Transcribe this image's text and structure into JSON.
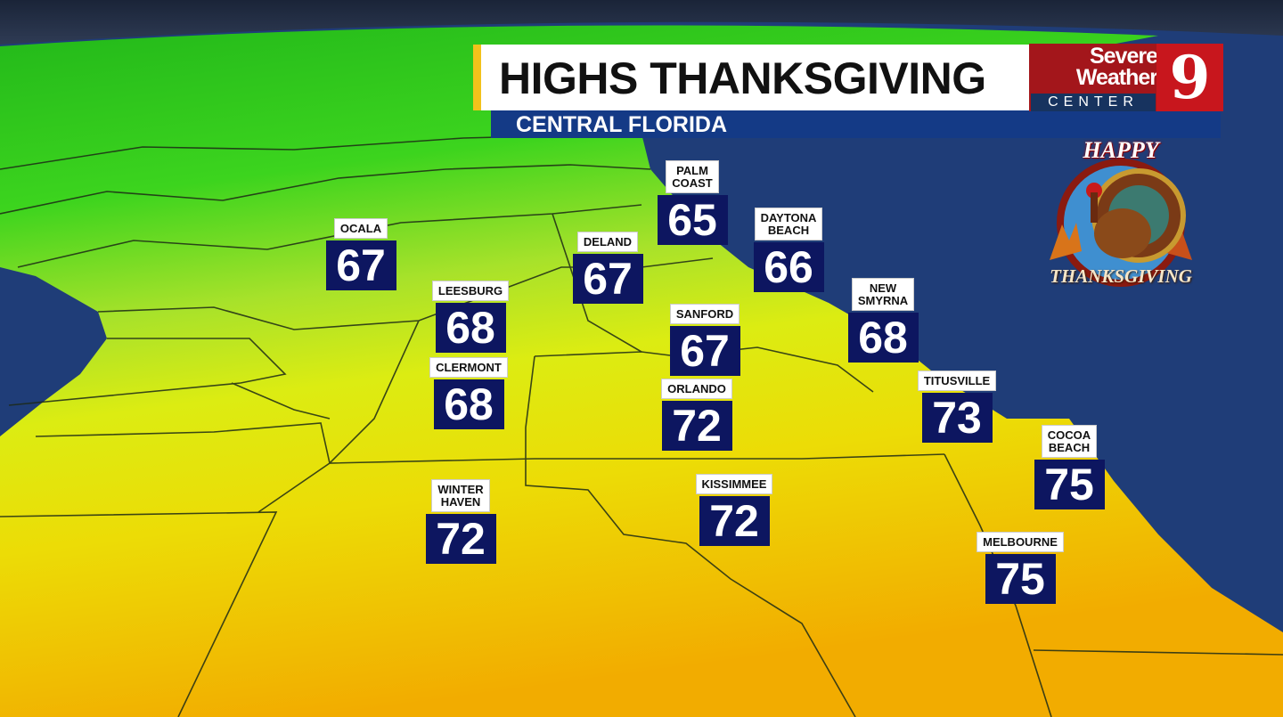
{
  "header": {
    "title": "HIGHS THANKSGIVING",
    "subtitle": "CENTRAL FLORIDA",
    "accent_color": "#f2c21b"
  },
  "logo": {
    "line1": "Severe",
    "line2": "Weather",
    "line3": "CENTER",
    "channel": "9",
    "brand_color": "#a3161b"
  },
  "badge": {
    "top_text": "HAPPY",
    "bottom_text": "THANKSGIVING",
    "icon": "turkey-icon"
  },
  "cities": [
    {
      "name": "OCALA",
      "high": "67"
    },
    {
      "name": "PALM\nCOAST",
      "high": "65"
    },
    {
      "name": "DELAND",
      "high": "67"
    },
    {
      "name": "DAYTONA\nBEACH",
      "high": "66"
    },
    {
      "name": "LEESBURG",
      "high": "68"
    },
    {
      "name": "SANFORD",
      "high": "67"
    },
    {
      "name": "NEW\nSMYRNA",
      "high": "68"
    },
    {
      "name": "CLERMONT",
      "high": "68"
    },
    {
      "name": "ORLANDO",
      "high": "72"
    },
    {
      "name": "TITUSVILLE",
      "high": "73"
    },
    {
      "name": "COCOA\nBEACH",
      "high": "75"
    },
    {
      "name": "WINTER\nHAVEN",
      "high": "72"
    },
    {
      "name": "KISSIMMEE",
      "high": "72"
    },
    {
      "name": "MELBOURNE",
      "high": "75"
    }
  ],
  "colors": {
    "ocean": "#1f3d78",
    "value_box": "#0d1660",
    "cool": "#2cc41c",
    "mild": "#e6ec0c",
    "warm": "#f0b000"
  }
}
